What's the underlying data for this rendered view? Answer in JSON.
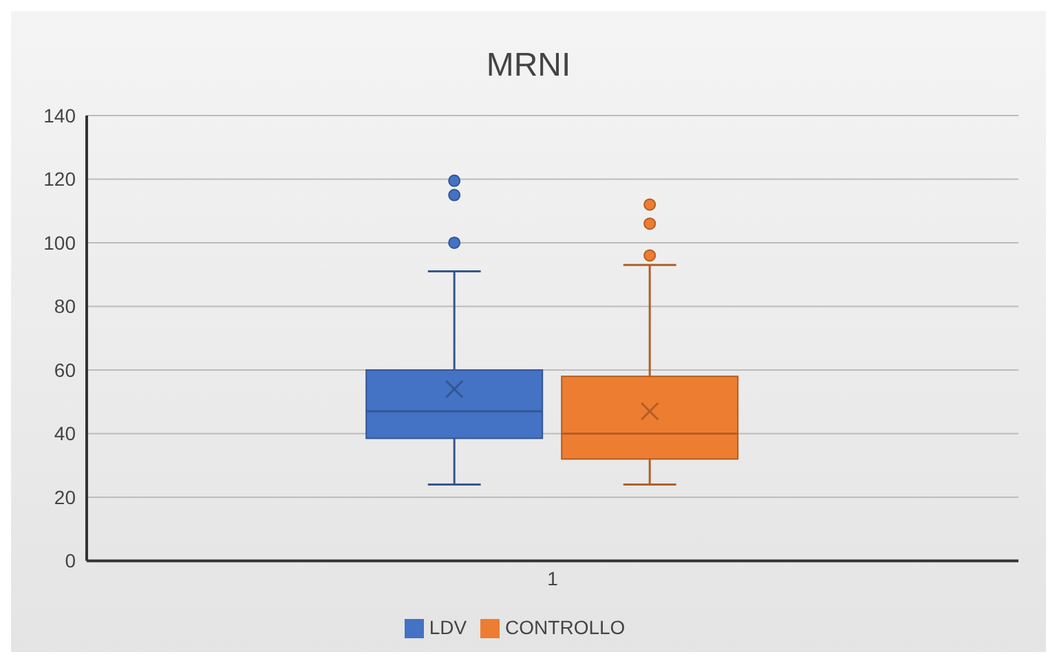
{
  "chart_data": {
    "type": "box",
    "title": "MRNI",
    "categories": [
      "1"
    ],
    "ylim": [
      0,
      140
    ],
    "yticks": [
      0,
      20,
      40,
      60,
      80,
      100,
      120,
      140
    ],
    "grid": "y",
    "legend": "bottom",
    "series": [
      {
        "name": "LDV",
        "color": "#4472c4",
        "boxes": [
          {
            "low": 24,
            "q1": 38.5,
            "median": 47,
            "q3": 60,
            "high": 91,
            "mean": 54,
            "outliers": [
              100,
              115,
              119.5
            ]
          }
        ]
      },
      {
        "name": "CONTROLLO",
        "color": "#ed7d31",
        "boxes": [
          {
            "low": 24,
            "q1": 32,
            "median": 40,
            "q3": 58,
            "high": 93,
            "mean": 47,
            "outliers": [
              96,
              106,
              112
            ]
          }
        ]
      }
    ]
  }
}
